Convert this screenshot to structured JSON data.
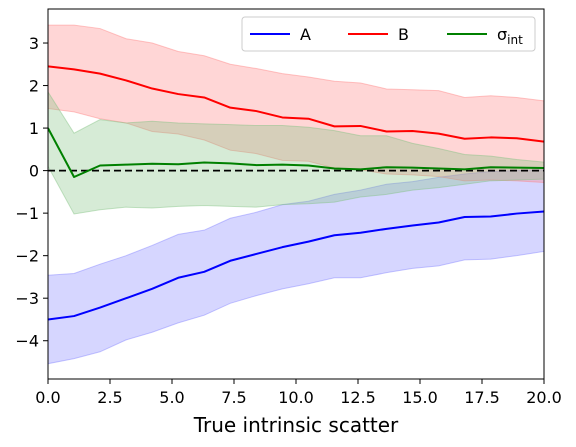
{
  "chart_data": {
    "type": "line",
    "title": "",
    "xlabel": "True intrinsic scatter",
    "ylabel": "",
    "xlim": [
      0,
      20
    ],
    "ylim": [
      -4.9,
      3.8
    ],
    "x_ticks": [
      0.0,
      2.5,
      5.0,
      7.5,
      10.0,
      12.5,
      15.0,
      17.5,
      20.0
    ],
    "x_tick_labels": [
      "0.0",
      "2.5",
      "5.0",
      "7.5",
      "10.0",
      "12.5",
      "15.0",
      "17.5",
      "20.0"
    ],
    "y_ticks": [
      -4,
      -3,
      -2,
      -1,
      0,
      1,
      2,
      3
    ],
    "y_tick_labels": [
      "−4",
      "−3",
      "−2",
      "−1",
      "0",
      "1",
      "2",
      "3"
    ],
    "grid": false,
    "legend": {
      "placement": "top-right",
      "columns": 3
    },
    "reference_line": {
      "y": 0,
      "style": "dashed",
      "color": "#000000"
    },
    "x": [
      0.0,
      1.05,
      2.1,
      3.15,
      4.2,
      5.25,
      6.3,
      7.35,
      8.4,
      9.45,
      10.5,
      11.55,
      12.6,
      13.65,
      14.7,
      15.75,
      16.8,
      17.85,
      18.9,
      20.0
    ],
    "series": [
      {
        "name": "A",
        "color": "#0000ff",
        "band_color": "#8080ff",
        "values": [
          -3.5,
          -3.42,
          -3.22,
          -3.0,
          -2.78,
          -2.52,
          -2.38,
          -2.12,
          -1.96,
          -1.8,
          -1.67,
          -1.52,
          -1.46,
          -1.37,
          -1.29,
          -1.22,
          -1.09,
          -1.08,
          -1.01,
          -0.96
        ],
        "upper": [
          -2.46,
          -2.42,
          -2.2,
          -2.0,
          -1.76,
          -1.5,
          -1.4,
          -1.12,
          -0.98,
          -0.8,
          -0.72,
          -0.56,
          -0.46,
          -0.32,
          -0.26,
          -0.16,
          -0.08,
          -0.02,
          0.0,
          0.02
        ],
        "lower": [
          -4.54,
          -4.42,
          -4.26,
          -3.98,
          -3.8,
          -3.58,
          -3.4,
          -3.12,
          -2.94,
          -2.78,
          -2.66,
          -2.52,
          -2.52,
          -2.4,
          -2.3,
          -2.24,
          -2.1,
          -2.08,
          -2.0,
          -1.9
        ]
      },
      {
        "name": "B",
        "color": "#ff0000",
        "band_color": "#ff8080",
        "values": [
          2.45,
          2.38,
          2.28,
          2.12,
          1.93,
          1.8,
          1.72,
          1.48,
          1.4,
          1.25,
          1.22,
          1.04,
          1.05,
          0.92,
          0.93,
          0.87,
          0.75,
          0.78,
          0.76,
          0.68
        ],
        "upper": [
          3.42,
          3.42,
          3.34,
          3.1,
          3.0,
          2.8,
          2.7,
          2.5,
          2.4,
          2.28,
          2.2,
          2.1,
          2.06,
          1.92,
          1.9,
          1.88,
          1.72,
          1.76,
          1.72,
          1.64
        ],
        "lower": [
          1.46,
          1.38,
          1.22,
          1.12,
          0.92,
          0.86,
          0.72,
          0.48,
          0.4,
          0.24,
          0.22,
          0.06,
          0.02,
          -0.08,
          -0.1,
          -0.14,
          -0.24,
          -0.22,
          -0.24,
          -0.28
        ]
      },
      {
        "name": "σint",
        "name_main": "σ",
        "name_sub": "int",
        "color": "#008000",
        "band_color": "#80c080",
        "values": [
          1.0,
          -0.15,
          0.12,
          0.14,
          0.16,
          0.15,
          0.19,
          0.17,
          0.13,
          0.14,
          0.12,
          0.05,
          0.03,
          0.08,
          0.07,
          0.05,
          0.03,
          0.08,
          0.07,
          0.06
        ],
        "upper": [
          1.85,
          0.88,
          1.2,
          1.12,
          1.16,
          1.12,
          1.1,
          1.08,
          1.06,
          1.06,
          1.02,
          0.94,
          0.82,
          0.82,
          0.64,
          0.52,
          0.38,
          0.34,
          0.26,
          0.2
        ],
        "lower": [
          0.1,
          -1.02,
          -0.92,
          -0.86,
          -0.88,
          -0.84,
          -0.82,
          -0.84,
          -0.86,
          -0.8,
          -0.78,
          -0.74,
          -0.62,
          -0.56,
          -0.46,
          -0.4,
          -0.32,
          -0.24,
          -0.22,
          -0.2
        ]
      }
    ]
  }
}
